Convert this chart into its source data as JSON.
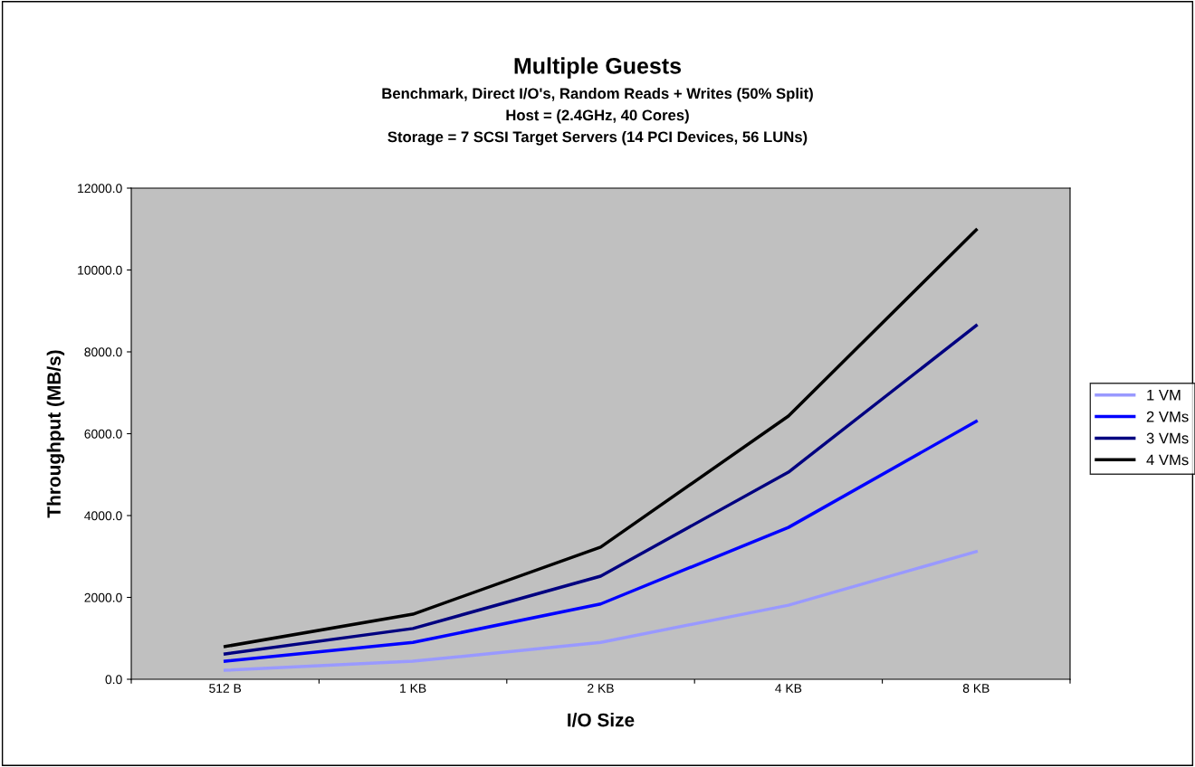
{
  "chart_data": {
    "type": "line",
    "title": "Multiple Guests",
    "subtitle": "Benchmark, Direct I/O's, Random Reads + Writes (50% Split)\nHost = (2.4GHz, 40 Cores)\nStorage = 7 SCSI Target Servers (14 PCI Devices, 56 LUNs)",
    "xlabel": "I/O Size",
    "ylabel": "Throughput (MB/s)",
    "categories": [
      "512 B",
      "1 KB",
      "2 KB",
      "4 KB",
      "8 KB"
    ],
    "series": [
      {
        "name": "1 VM",
        "color": "#9999ff",
        "values": [
          220,
          440,
          900,
          1810,
          3120
        ]
      },
      {
        "name": "2 VMs",
        "color": "#0000ff",
        "values": [
          440,
          900,
          1840,
          3710,
          6300
        ]
      },
      {
        "name": "3 VMs",
        "color": "#000080",
        "values": [
          620,
          1240,
          2520,
          5060,
          8640
        ]
      },
      {
        "name": "4 VMs",
        "color": "#000000",
        "values": [
          800,
          1590,
          3230,
          6430,
          10980
        ]
      }
    ],
    "ylim": [
      0,
      12000
    ],
    "yticks": [
      {
        "value": 0,
        "label": "0.0"
      },
      {
        "value": 2000,
        "label": "2000.0"
      },
      {
        "value": 4000,
        "label": "4000.0"
      },
      {
        "value": 6000,
        "label": "6000.0"
      },
      {
        "value": 8000,
        "label": "8000.0"
      },
      {
        "value": 10000,
        "label": "10000.0"
      },
      {
        "value": 12000,
        "label": "12000.0"
      }
    ],
    "grid": false,
    "legend": "right",
    "marker": "none",
    "line_style": "solid"
  }
}
